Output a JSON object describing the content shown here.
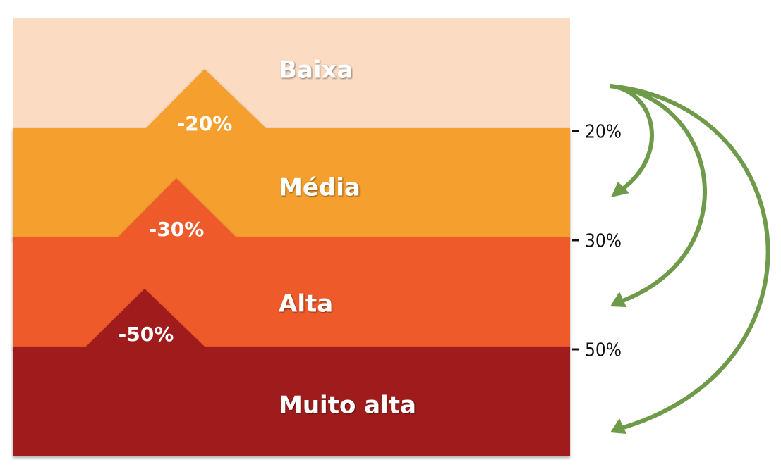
{
  "bands": [
    {
      "label": "Baixa"
    },
    {
      "label": "Média"
    },
    {
      "label": "Alta"
    },
    {
      "label": "Muito alta"
    }
  ],
  "reductions": [
    "-20%",
    "-30%",
    "-50%"
  ],
  "thresholds": [
    "20%",
    "30%",
    "50%"
  ]
}
